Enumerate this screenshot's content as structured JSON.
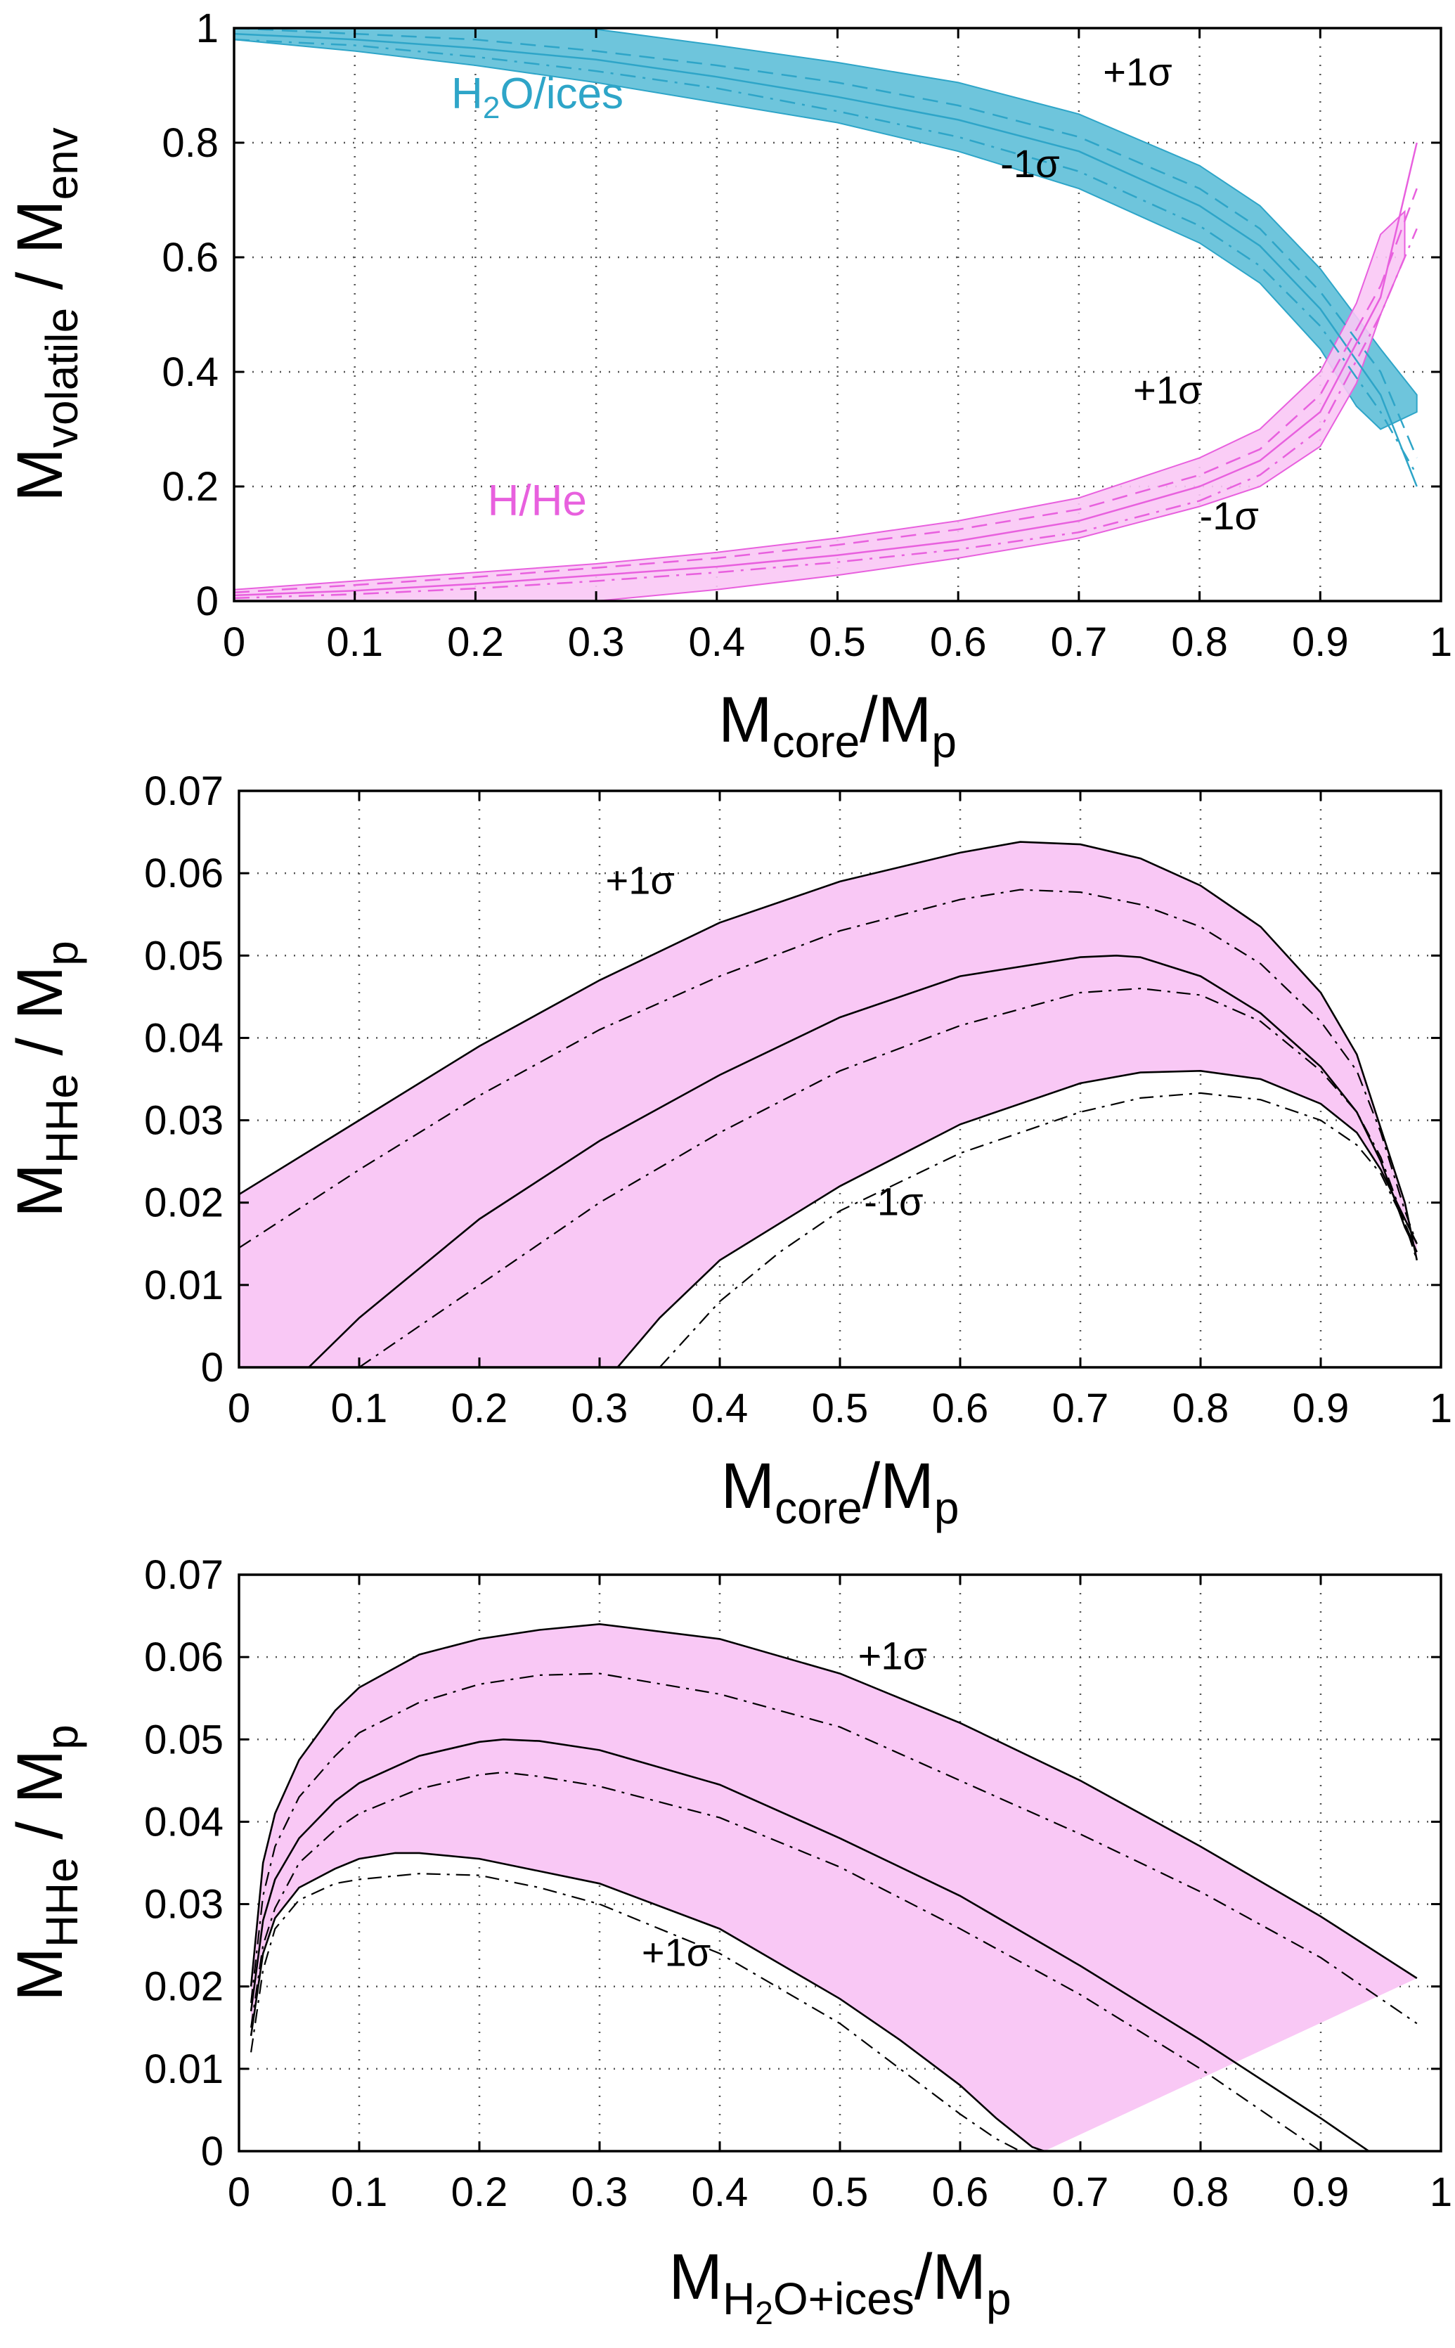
{
  "chart_data": [
    {
      "type": "area",
      "title": "",
      "xlabel": "M_core/M_p",
      "ylabel": "M_volatile / M_env",
      "xlim": [
        0,
        1
      ],
      "ylim": [
        0,
        1
      ],
      "grid": true,
      "xticks": [
        "0",
        "0.1",
        "0.2",
        "0.3",
        "0.4",
        "0.5",
        "0.6",
        "0.7",
        "0.8",
        "0.9",
        "1"
      ],
      "yticks": [
        "0",
        "0.2",
        "0.4",
        "0.6",
        "0.8",
        "1"
      ],
      "x_axis_label": {
        "main": "M",
        "sub": "core",
        "suffix": "/M",
        "sub2": "p"
      },
      "y_axis_label": {
        "main": "M",
        "sub": "volatile",
        "suffix": " / M",
        "sub2": "env"
      },
      "colors": {
        "h2o": "#2ea5c8",
        "h2o_fill": "#6ec5dc",
        "hhe": "#e860de",
        "hhe_fill": "#f9c8f5"
      },
      "labels": [
        {
          "text": "H",
          "sub": "2",
          "rest": "O/ices",
          "color": "#2ea5c8",
          "x": 0.18,
          "y": 0.86
        },
        {
          "text": "H/He",
          "color": "#e860de",
          "x": 0.21,
          "y": 0.15
        }
      ],
      "annotations": [
        {
          "text": "+1σ",
          "x": 0.72,
          "y": 0.9
        },
        {
          "text": "-1σ",
          "x": 0.635,
          "y": 0.74
        },
        {
          "text": "+1σ",
          "x": 0.745,
          "y": 0.345
        },
        {
          "text": "-1σ",
          "x": 0.8,
          "y": 0.125
        }
      ],
      "series": [
        {
          "name": "H2O/ices upper (+1σ)",
          "role": "h2o-bound",
          "x": [
            0,
            0.1,
            0.2,
            0.3,
            0.4,
            0.5,
            0.6,
            0.7,
            0.8,
            0.85,
            0.9,
            0.95,
            0.98
          ],
          "values": [
            1,
            1,
            1,
            0.998,
            0.97,
            0.94,
            0.905,
            0.85,
            0.76,
            0.69,
            0.58,
            0.44,
            0.36
          ]
        },
        {
          "name": "H2O/ices lower (-1σ)",
          "role": "h2o-bound",
          "x": [
            0,
            0.1,
            0.2,
            0.3,
            0.4,
            0.5,
            0.6,
            0.7,
            0.8,
            0.85,
            0.9,
            0.93,
            0.95,
            0.98
          ],
          "values": [
            0.98,
            0.96,
            0.935,
            0.905,
            0.87,
            0.835,
            0.785,
            0.72,
            0.625,
            0.555,
            0.44,
            0.34,
            0.3,
            0.33
          ]
        },
        {
          "name": "H2O/ices central",
          "role": "h2o-line",
          "x": [
            0,
            0.1,
            0.2,
            0.3,
            0.4,
            0.5,
            0.6,
            0.7,
            0.8,
            0.85,
            0.9,
            0.95,
            0.98
          ],
          "values": [
            0.99,
            0.98,
            0.965,
            0.945,
            0.915,
            0.88,
            0.84,
            0.785,
            0.69,
            0.62,
            0.51,
            0.36,
            0.2
          ]
        },
        {
          "name": "H2O/ices dashed",
          "role": "h2o-dash",
          "x": [
            0,
            0.1,
            0.2,
            0.3,
            0.4,
            0.5,
            0.6,
            0.7,
            0.8,
            0.85,
            0.9,
            0.95,
            0.98
          ],
          "values": [
            1,
            0.99,
            0.98,
            0.96,
            0.935,
            0.905,
            0.865,
            0.81,
            0.72,
            0.65,
            0.54,
            0.4,
            0.25
          ]
        },
        {
          "name": "H2O/ices dash-dot",
          "role": "h2o-dashdot",
          "x": [
            0,
            0.1,
            0.2,
            0.3,
            0.4,
            0.5,
            0.6,
            0.7,
            0.8,
            0.85,
            0.9,
            0.95,
            0.98
          ],
          "values": [
            0.98,
            0.97,
            0.95,
            0.925,
            0.895,
            0.855,
            0.81,
            0.75,
            0.655,
            0.585,
            0.48,
            0.33,
            0.22
          ]
        },
        {
          "name": "H/He upper (+1σ)",
          "role": "hhe-bound",
          "x": [
            0,
            0.1,
            0.2,
            0.3,
            0.4,
            0.5,
            0.6,
            0.7,
            0.8,
            0.85,
            0.9,
            0.93,
            0.95,
            0.97
          ],
          "values": [
            0.02,
            0.035,
            0.05,
            0.065,
            0.085,
            0.11,
            0.14,
            0.18,
            0.25,
            0.3,
            0.4,
            0.52,
            0.64,
            0.68
          ]
        },
        {
          "name": "H/He lower (-1σ)",
          "role": "hhe-bound",
          "x": [
            0,
            0.1,
            0.2,
            0.3,
            0.4,
            0.5,
            0.6,
            0.7,
            0.8,
            0.85,
            0.9,
            0.93,
            0.95,
            0.97
          ],
          "values": [
            0,
            0,
            0,
            0,
            0.02,
            0.045,
            0.075,
            0.11,
            0.165,
            0.2,
            0.27,
            0.38,
            0.5,
            0.6
          ]
        },
        {
          "name": "H/He central",
          "role": "hhe-line",
          "x": [
            0,
            0.1,
            0.2,
            0.3,
            0.4,
            0.5,
            0.6,
            0.7,
            0.8,
            0.85,
            0.9,
            0.95,
            0.98
          ],
          "values": [
            0.01,
            0.018,
            0.03,
            0.045,
            0.06,
            0.08,
            0.105,
            0.14,
            0.2,
            0.245,
            0.33,
            0.53,
            0.8
          ]
        },
        {
          "name": "H/He dashed",
          "role": "hhe-dash",
          "x": [
            0,
            0.1,
            0.2,
            0.3,
            0.4,
            0.5,
            0.6,
            0.7,
            0.8,
            0.85,
            0.9,
            0.95,
            0.98
          ],
          "values": [
            0.015,
            0.028,
            0.042,
            0.058,
            0.075,
            0.098,
            0.125,
            0.16,
            0.22,
            0.265,
            0.36,
            0.55,
            0.72
          ]
        },
        {
          "name": "H/He dash-dot",
          "role": "hhe-dashdot",
          "x": [
            0,
            0.1,
            0.2,
            0.3,
            0.4,
            0.5,
            0.6,
            0.7,
            0.8,
            0.85,
            0.9,
            0.95,
            0.98
          ],
          "values": [
            0.005,
            0.012,
            0.022,
            0.035,
            0.05,
            0.068,
            0.09,
            0.12,
            0.175,
            0.22,
            0.3,
            0.5,
            0.65
          ]
        }
      ]
    },
    {
      "type": "area",
      "title": "",
      "xlabel": "M_core/M_p",
      "ylabel": "M_HHe / M_p",
      "xlim": [
        0,
        1
      ],
      "ylim": [
        0,
        0.07
      ],
      "grid": true,
      "xticks": [
        "0",
        "0.1",
        "0.2",
        "0.3",
        "0.4",
        "0.5",
        "0.6",
        "0.7",
        "0.8",
        "0.9",
        "1"
      ],
      "yticks": [
        "0",
        "0.01",
        "0.02",
        "0.03",
        "0.04",
        "0.05",
        "0.06",
        "0.07"
      ],
      "x_axis_label": {
        "main": "M",
        "sub": "core",
        "suffix": "/M",
        "sub2": "p"
      },
      "y_axis_label": {
        "main": "M",
        "sub": "HHe",
        "suffix": " / M",
        "sub2": "p"
      },
      "colors": {
        "fill": "#f9c8f5",
        "line": "#000000"
      },
      "annotations": [
        {
          "text": "+1σ",
          "x": 0.305,
          "y": 0.0575
        },
        {
          "text": "-1σ",
          "x": 0.52,
          "y": 0.0185
        }
      ],
      "series": [
        {
          "name": "upper (+1σ)",
          "role": "upper",
          "x": [
            0,
            0.1,
            0.2,
            0.3,
            0.4,
            0.5,
            0.6,
            0.65,
            0.7,
            0.75,
            0.8,
            0.85,
            0.9,
            0.93,
            0.95,
            0.97,
            0.98
          ],
          "values": [
            0.021,
            0.03,
            0.039,
            0.047,
            0.054,
            0.059,
            0.0625,
            0.0638,
            0.0635,
            0.0618,
            0.0585,
            0.0535,
            0.0455,
            0.038,
            0.029,
            0.02,
            0.013
          ]
        },
        {
          "name": "central",
          "role": "mid",
          "x": [
            0.058,
            0.1,
            0.2,
            0.3,
            0.4,
            0.5,
            0.6,
            0.7,
            0.73,
            0.75,
            0.8,
            0.85,
            0.9,
            0.93,
            0.95,
            0.97,
            0.98
          ],
          "values": [
            0,
            0.006,
            0.018,
            0.0275,
            0.0355,
            0.0425,
            0.0475,
            0.0498,
            0.05,
            0.0498,
            0.0475,
            0.043,
            0.0365,
            0.031,
            0.025,
            0.017,
            0.014
          ]
        },
        {
          "name": "lower (-1σ)",
          "role": "lower",
          "x": [
            0.315,
            0.35,
            0.4,
            0.5,
            0.6,
            0.7,
            0.75,
            0.8,
            0.85,
            0.9,
            0.93,
            0.95,
            0.97,
            0.98
          ],
          "values": [
            0,
            0.006,
            0.013,
            0.022,
            0.0295,
            0.0345,
            0.0358,
            0.036,
            0.035,
            0.032,
            0.0285,
            0.024,
            0.018,
            0.015
          ]
        },
        {
          "name": "upper dash-dot",
          "role": "dashdot",
          "x": [
            0,
            0.1,
            0.2,
            0.3,
            0.4,
            0.5,
            0.6,
            0.65,
            0.7,
            0.75,
            0.8,
            0.85,
            0.9,
            0.93,
            0.95,
            0.97,
            0.98
          ],
          "values": [
            0.0145,
            0.024,
            0.033,
            0.041,
            0.0475,
            0.053,
            0.0568,
            0.058,
            0.0577,
            0.0562,
            0.0535,
            0.049,
            0.042,
            0.036,
            0.0285,
            0.019,
            0.015
          ]
        },
        {
          "name": "central dash-dot",
          "role": "dashdot",
          "x": [
            0.1,
            0.15,
            0.2,
            0.3,
            0.4,
            0.5,
            0.6,
            0.7,
            0.75,
            0.8,
            0.85,
            0.9,
            0.93,
            0.95,
            0.97,
            0.98
          ],
          "values": [
            0,
            0.005,
            0.01,
            0.02,
            0.0285,
            0.036,
            0.0415,
            0.0455,
            0.046,
            0.0452,
            0.042,
            0.036,
            0.031,
            0.0255,
            0.0175,
            0.013
          ]
        },
        {
          "name": "lower dash-dot",
          "role": "dashdot",
          "x": [
            0.35,
            0.4,
            0.45,
            0.5,
            0.6,
            0.7,
            0.75,
            0.8,
            0.85,
            0.9,
            0.93,
            0.95,
            0.97,
            0.98
          ],
          "values": [
            0,
            0.008,
            0.014,
            0.019,
            0.026,
            0.031,
            0.0327,
            0.0333,
            0.0325,
            0.03,
            0.027,
            0.0235,
            0.0175,
            0.014
          ]
        }
      ]
    },
    {
      "type": "area",
      "title": "",
      "xlabel": "M_H2O+ices/M_p",
      "ylabel": "M_HHe / M_p",
      "xlim": [
        0,
        1
      ],
      "ylim": [
        0,
        0.07
      ],
      "grid": true,
      "xticks": [
        "0",
        "0.1",
        "0.2",
        "0.3",
        "0.4",
        "0.5",
        "0.6",
        "0.7",
        "0.8",
        "0.9",
        "1"
      ],
      "yticks": [
        "0",
        "0.01",
        "0.02",
        "0.03",
        "0.04",
        "0.05",
        "0.06",
        "0.07"
      ],
      "x_axis_label": {
        "main": "M",
        "sub": "H",
        "sub_small": "2",
        "sub_rest": "O+ices",
        "suffix": "/M",
        "sub2": "p"
      },
      "y_axis_label": {
        "main": "M",
        "sub": "HHe",
        "suffix": " / M",
        "sub2": "p"
      },
      "colors": {
        "fill": "#f9c8f5",
        "line": "#000000"
      },
      "annotations": [
        {
          "text": "+1σ",
          "x": 0.515,
          "y": 0.0585
        },
        {
          "text": "+1σ",
          "x": 0.335,
          "y": 0.0225
        }
      ],
      "series": [
        {
          "name": "upper (+1σ)",
          "role": "upper",
          "x": [
            0.01,
            0.02,
            0.03,
            0.05,
            0.08,
            0.1,
            0.15,
            0.2,
            0.25,
            0.3,
            0.4,
            0.5,
            0.6,
            0.7,
            0.8,
            0.9,
            0.98
          ],
          "values": [
            0.02,
            0.035,
            0.041,
            0.0475,
            0.0535,
            0.0563,
            0.0603,
            0.0622,
            0.0633,
            0.064,
            0.0622,
            0.058,
            0.052,
            0.045,
            0.037,
            0.0285,
            0.021
          ]
        },
        {
          "name": "central",
          "role": "mid",
          "x": [
            0.01,
            0.02,
            0.03,
            0.05,
            0.08,
            0.1,
            0.15,
            0.2,
            0.22,
            0.25,
            0.3,
            0.4,
            0.5,
            0.6,
            0.7,
            0.8,
            0.9,
            0.94
          ],
          "values": [
            0.017,
            0.028,
            0.033,
            0.038,
            0.0425,
            0.0447,
            0.048,
            0.0497,
            0.05,
            0.0498,
            0.0487,
            0.0445,
            0.038,
            0.031,
            0.0225,
            0.0135,
            0.004,
            0
          ]
        },
        {
          "name": "lower (-1σ)",
          "role": "lower",
          "x": [
            0.01,
            0.02,
            0.03,
            0.05,
            0.08,
            0.1,
            0.13,
            0.15,
            0.2,
            0.3,
            0.4,
            0.5,
            0.55,
            0.6,
            0.63,
            0.66,
            0.67
          ],
          "values": [
            0.014,
            0.024,
            0.0283,
            0.032,
            0.0343,
            0.0355,
            0.0362,
            0.0362,
            0.0355,
            0.0325,
            0.027,
            0.0185,
            0.0135,
            0.008,
            0.004,
            0.0005,
            0
          ]
        },
        {
          "name": "upper dash-dot",
          "role": "dashdot",
          "x": [
            0.01,
            0.02,
            0.03,
            0.05,
            0.08,
            0.1,
            0.15,
            0.2,
            0.25,
            0.3,
            0.4,
            0.5,
            0.6,
            0.7,
            0.8,
            0.9,
            0.98
          ],
          "values": [
            0.018,
            0.031,
            0.037,
            0.043,
            0.048,
            0.0508,
            0.0545,
            0.0567,
            0.0578,
            0.058,
            0.0555,
            0.0515,
            0.045,
            0.0385,
            0.0315,
            0.0235,
            0.0155
          ]
        },
        {
          "name": "central dash-dot",
          "role": "dashdot",
          "x": [
            0.01,
            0.02,
            0.03,
            0.05,
            0.08,
            0.1,
            0.15,
            0.2,
            0.22,
            0.25,
            0.3,
            0.4,
            0.5,
            0.6,
            0.7,
            0.8,
            0.87,
            0.9
          ],
          "values": [
            0.015,
            0.025,
            0.0295,
            0.035,
            0.039,
            0.041,
            0.044,
            0.0457,
            0.046,
            0.0455,
            0.0443,
            0.0405,
            0.0345,
            0.027,
            0.019,
            0.01,
            0.003,
            0
          ]
        },
        {
          "name": "lower dash-dot",
          "role": "dashdot",
          "x": [
            0.01,
            0.02,
            0.03,
            0.05,
            0.08,
            0.1,
            0.15,
            0.2,
            0.25,
            0.3,
            0.4,
            0.5,
            0.55,
            0.6,
            0.63,
            0.65
          ],
          "values": [
            0.012,
            0.022,
            0.027,
            0.0305,
            0.0325,
            0.033,
            0.0337,
            0.0335,
            0.032,
            0.03,
            0.024,
            0.0155,
            0.01,
            0.0045,
            0.0015,
            0
          ]
        }
      ]
    }
  ]
}
